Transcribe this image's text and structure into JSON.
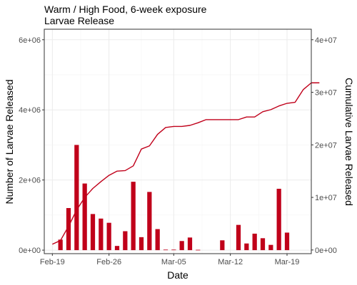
{
  "chart_data": {
    "type": "bar+line",
    "title": "Warm / High Food, 6-week exposure",
    "subtitle": "Larvae Release",
    "xlabel": "Date",
    "ylabel_left": "Number of Larvae Released",
    "ylabel_right": "Cumulative Larvae Released",
    "x_start": "2024-02-18",
    "x_end": "2024-03-22",
    "x_ticks": [
      {
        "date": "2024-02-19",
        "label": "Feb-19"
      },
      {
        "date": "2024-02-26",
        "label": "Feb-26"
      },
      {
        "date": "2024-03-05",
        "label": "Mar-05"
      },
      {
        "date": "2024-03-12",
        "label": "Mar-12"
      },
      {
        "date": "2024-03-19",
        "label": "Mar-19"
      }
    ],
    "ylim_left": [
      -100000,
      6300000
    ],
    "yticks_left": [
      {
        "value": 0,
        "label": "0e+00"
      },
      {
        "value": 2000000,
        "label": "2e+06"
      },
      {
        "value": 4000000,
        "label": "4e+06"
      },
      {
        "value": 6000000,
        "label": "6e+06"
      }
    ],
    "ylim_right": [
      -700000,
      42000000
    ],
    "yticks_right": [
      {
        "value": 0,
        "label": "0e+00"
      },
      {
        "value": 10000000,
        "label": "1e+07"
      },
      {
        "value": 20000000,
        "label": "2e+07"
      },
      {
        "value": 30000000,
        "label": "3e+07"
      },
      {
        "value": 40000000,
        "label": "4e+07"
      }
    ],
    "grid": true,
    "bar_color": "#c0001a",
    "line_color": "#c0001a",
    "daily_series": [
      {
        "date": "2024-02-20",
        "value": 300000
      },
      {
        "date": "2024-02-21",
        "value": 1200000
      },
      {
        "date": "2024-02-22",
        "value": 3000000
      },
      {
        "date": "2024-02-23",
        "value": 1900000
      },
      {
        "date": "2024-02-24",
        "value": 1030000
      },
      {
        "date": "2024-02-25",
        "value": 900000
      },
      {
        "date": "2024-02-26",
        "value": 780000
      },
      {
        "date": "2024-02-27",
        "value": 120000
      },
      {
        "date": "2024-02-28",
        "value": 540000
      },
      {
        "date": "2024-02-29",
        "value": 1950000
      },
      {
        "date": "2024-03-01",
        "value": 370000
      },
      {
        "date": "2024-03-02",
        "value": 1660000
      },
      {
        "date": "2024-03-03",
        "value": 600000
      },
      {
        "date": "2024-03-04",
        "value": 15000
      },
      {
        "date": "2024-03-05",
        "value": 15000
      },
      {
        "date": "2024-03-06",
        "value": 260000
      },
      {
        "date": "2024-03-07",
        "value": 360000
      },
      {
        "date": "2024-03-08",
        "value": 10000
      },
      {
        "date": "2024-03-11",
        "value": 280000
      },
      {
        "date": "2024-03-13",
        "value": 720000
      },
      {
        "date": "2024-03-14",
        "value": 190000
      },
      {
        "date": "2024-03-15",
        "value": 470000
      },
      {
        "date": "2024-03-16",
        "value": 340000
      },
      {
        "date": "2024-03-17",
        "value": 150000
      },
      {
        "date": "2024-03-18",
        "value": 1750000
      },
      {
        "date": "2024-03-19",
        "value": 500000
      }
    ],
    "cumulative_series": [
      {
        "date": "2024-02-19",
        "value": 1100000
      },
      {
        "date": "2024-02-20",
        "value": 1800000
      },
      {
        "date": "2024-02-21",
        "value": 4500000
      },
      {
        "date": "2024-02-22",
        "value": 7600000
      },
      {
        "date": "2024-02-23",
        "value": 10000000
      },
      {
        "date": "2024-02-24",
        "value": 11700000
      },
      {
        "date": "2024-02-25",
        "value": 13000000
      },
      {
        "date": "2024-02-26",
        "value": 14200000
      },
      {
        "date": "2024-02-27",
        "value": 15000000
      },
      {
        "date": "2024-02-28",
        "value": 15100000
      },
      {
        "date": "2024-02-29",
        "value": 16000000
      },
      {
        "date": "2024-03-01",
        "value": 19200000
      },
      {
        "date": "2024-03-02",
        "value": 19800000
      },
      {
        "date": "2024-03-03",
        "value": 22000000
      },
      {
        "date": "2024-03-04",
        "value": 23300000
      },
      {
        "date": "2024-03-05",
        "value": 23500000
      },
      {
        "date": "2024-03-06",
        "value": 23500000
      },
      {
        "date": "2024-03-07",
        "value": 23700000
      },
      {
        "date": "2024-03-08",
        "value": 24200000
      },
      {
        "date": "2024-03-09",
        "value": 24800000
      },
      {
        "date": "2024-03-10",
        "value": 24800000
      },
      {
        "date": "2024-03-11",
        "value": 24800000
      },
      {
        "date": "2024-03-12",
        "value": 24800000
      },
      {
        "date": "2024-03-13",
        "value": 24800000
      },
      {
        "date": "2024-03-14",
        "value": 25300000
      },
      {
        "date": "2024-03-15",
        "value": 25300000
      },
      {
        "date": "2024-03-16",
        "value": 26300000
      },
      {
        "date": "2024-03-17",
        "value": 26700000
      },
      {
        "date": "2024-03-18",
        "value": 27400000
      },
      {
        "date": "2024-03-19",
        "value": 27900000
      },
      {
        "date": "2024-03-20",
        "value": 28100000
      },
      {
        "date": "2024-03-21",
        "value": 30500000
      },
      {
        "date": "2024-03-22",
        "value": 31800000
      },
      {
        "date": "2024-03-23",
        "value": 31800000
      }
    ]
  }
}
